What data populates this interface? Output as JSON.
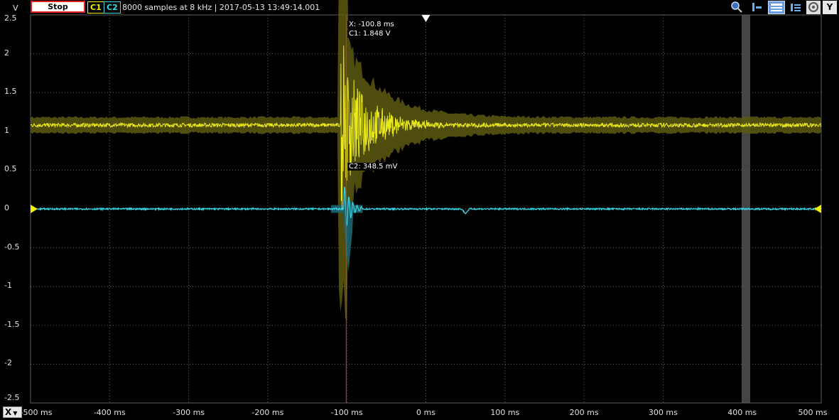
{
  "toolbar": {
    "stop_label": "Stop",
    "c1_label": "C1",
    "c2_label": "C2",
    "info": "8000 samples at 8 kHz | 2017-05-13 13:49:14.001",
    "y_button": "Y",
    "x_button": "X"
  },
  "axis": {
    "y_unit": "V",
    "y_ticks": [
      "2.5",
      "2",
      "1.5",
      "1",
      "0.5",
      "0",
      "-0.5",
      "-1",
      "-1.5",
      "-2",
      "-2.5"
    ],
    "x_ticks": [
      "-500 ms",
      "-400 ms",
      "-300 ms",
      "-200 ms",
      "-100 ms",
      "0 ms",
      "100 ms",
      "200 ms",
      "300 ms",
      "400 ms",
      "500 ms"
    ]
  },
  "cursor": {
    "x_readout": "X: -100.8 ms",
    "c1_readout": "C1: 1.848 V",
    "c2_readout": "C2: 348.5 mV"
  },
  "colors": {
    "c1": "#e8e81c",
    "c2": "#38d8e8",
    "cursor": "#e03030"
  }
}
